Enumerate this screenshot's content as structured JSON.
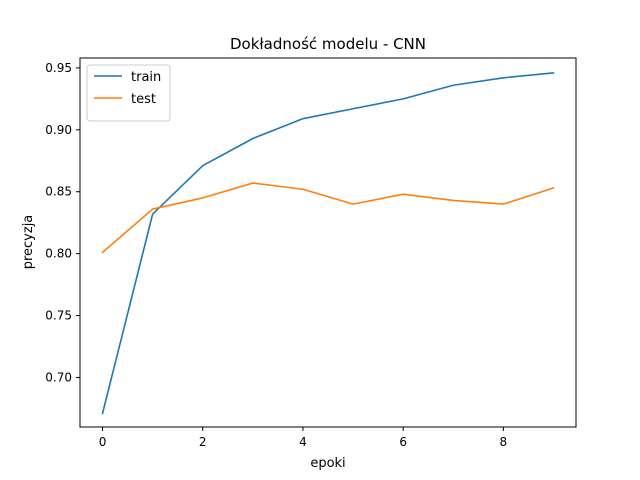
{
  "chart_data": {
    "type": "line",
    "title": "Dokładność modelu - CNN",
    "xlabel": "epoki",
    "ylabel": "precyzja",
    "x": [
      0,
      1,
      2,
      3,
      4,
      5,
      6,
      7,
      8,
      9
    ],
    "xlim": [
      -0.45,
      9.45
    ],
    "ylim": [
      0.66,
      0.958
    ],
    "xticks": [
      0,
      2,
      4,
      6,
      8
    ],
    "yticks": [
      0.7,
      0.75,
      0.8,
      0.85,
      0.9,
      0.95
    ],
    "xtick_labels": [
      "0",
      "2",
      "4",
      "6",
      "8"
    ],
    "ytick_labels": [
      "0.70",
      "0.75",
      "0.80",
      "0.85",
      "0.90",
      "0.95"
    ],
    "grid": false,
    "legend_position": "top-left",
    "series": [
      {
        "name": "train",
        "color": "#1f77b4",
        "values": [
          0.671,
          0.832,
          0.871,
          0.893,
          0.909,
          0.917,
          0.925,
          0.936,
          0.942,
          0.946
        ]
      },
      {
        "name": "test",
        "color": "#ff7f0e",
        "values": [
          0.801,
          0.836,
          0.845,
          0.857,
          0.852,
          0.84,
          0.848,
          0.843,
          0.84,
          0.853
        ]
      }
    ]
  }
}
